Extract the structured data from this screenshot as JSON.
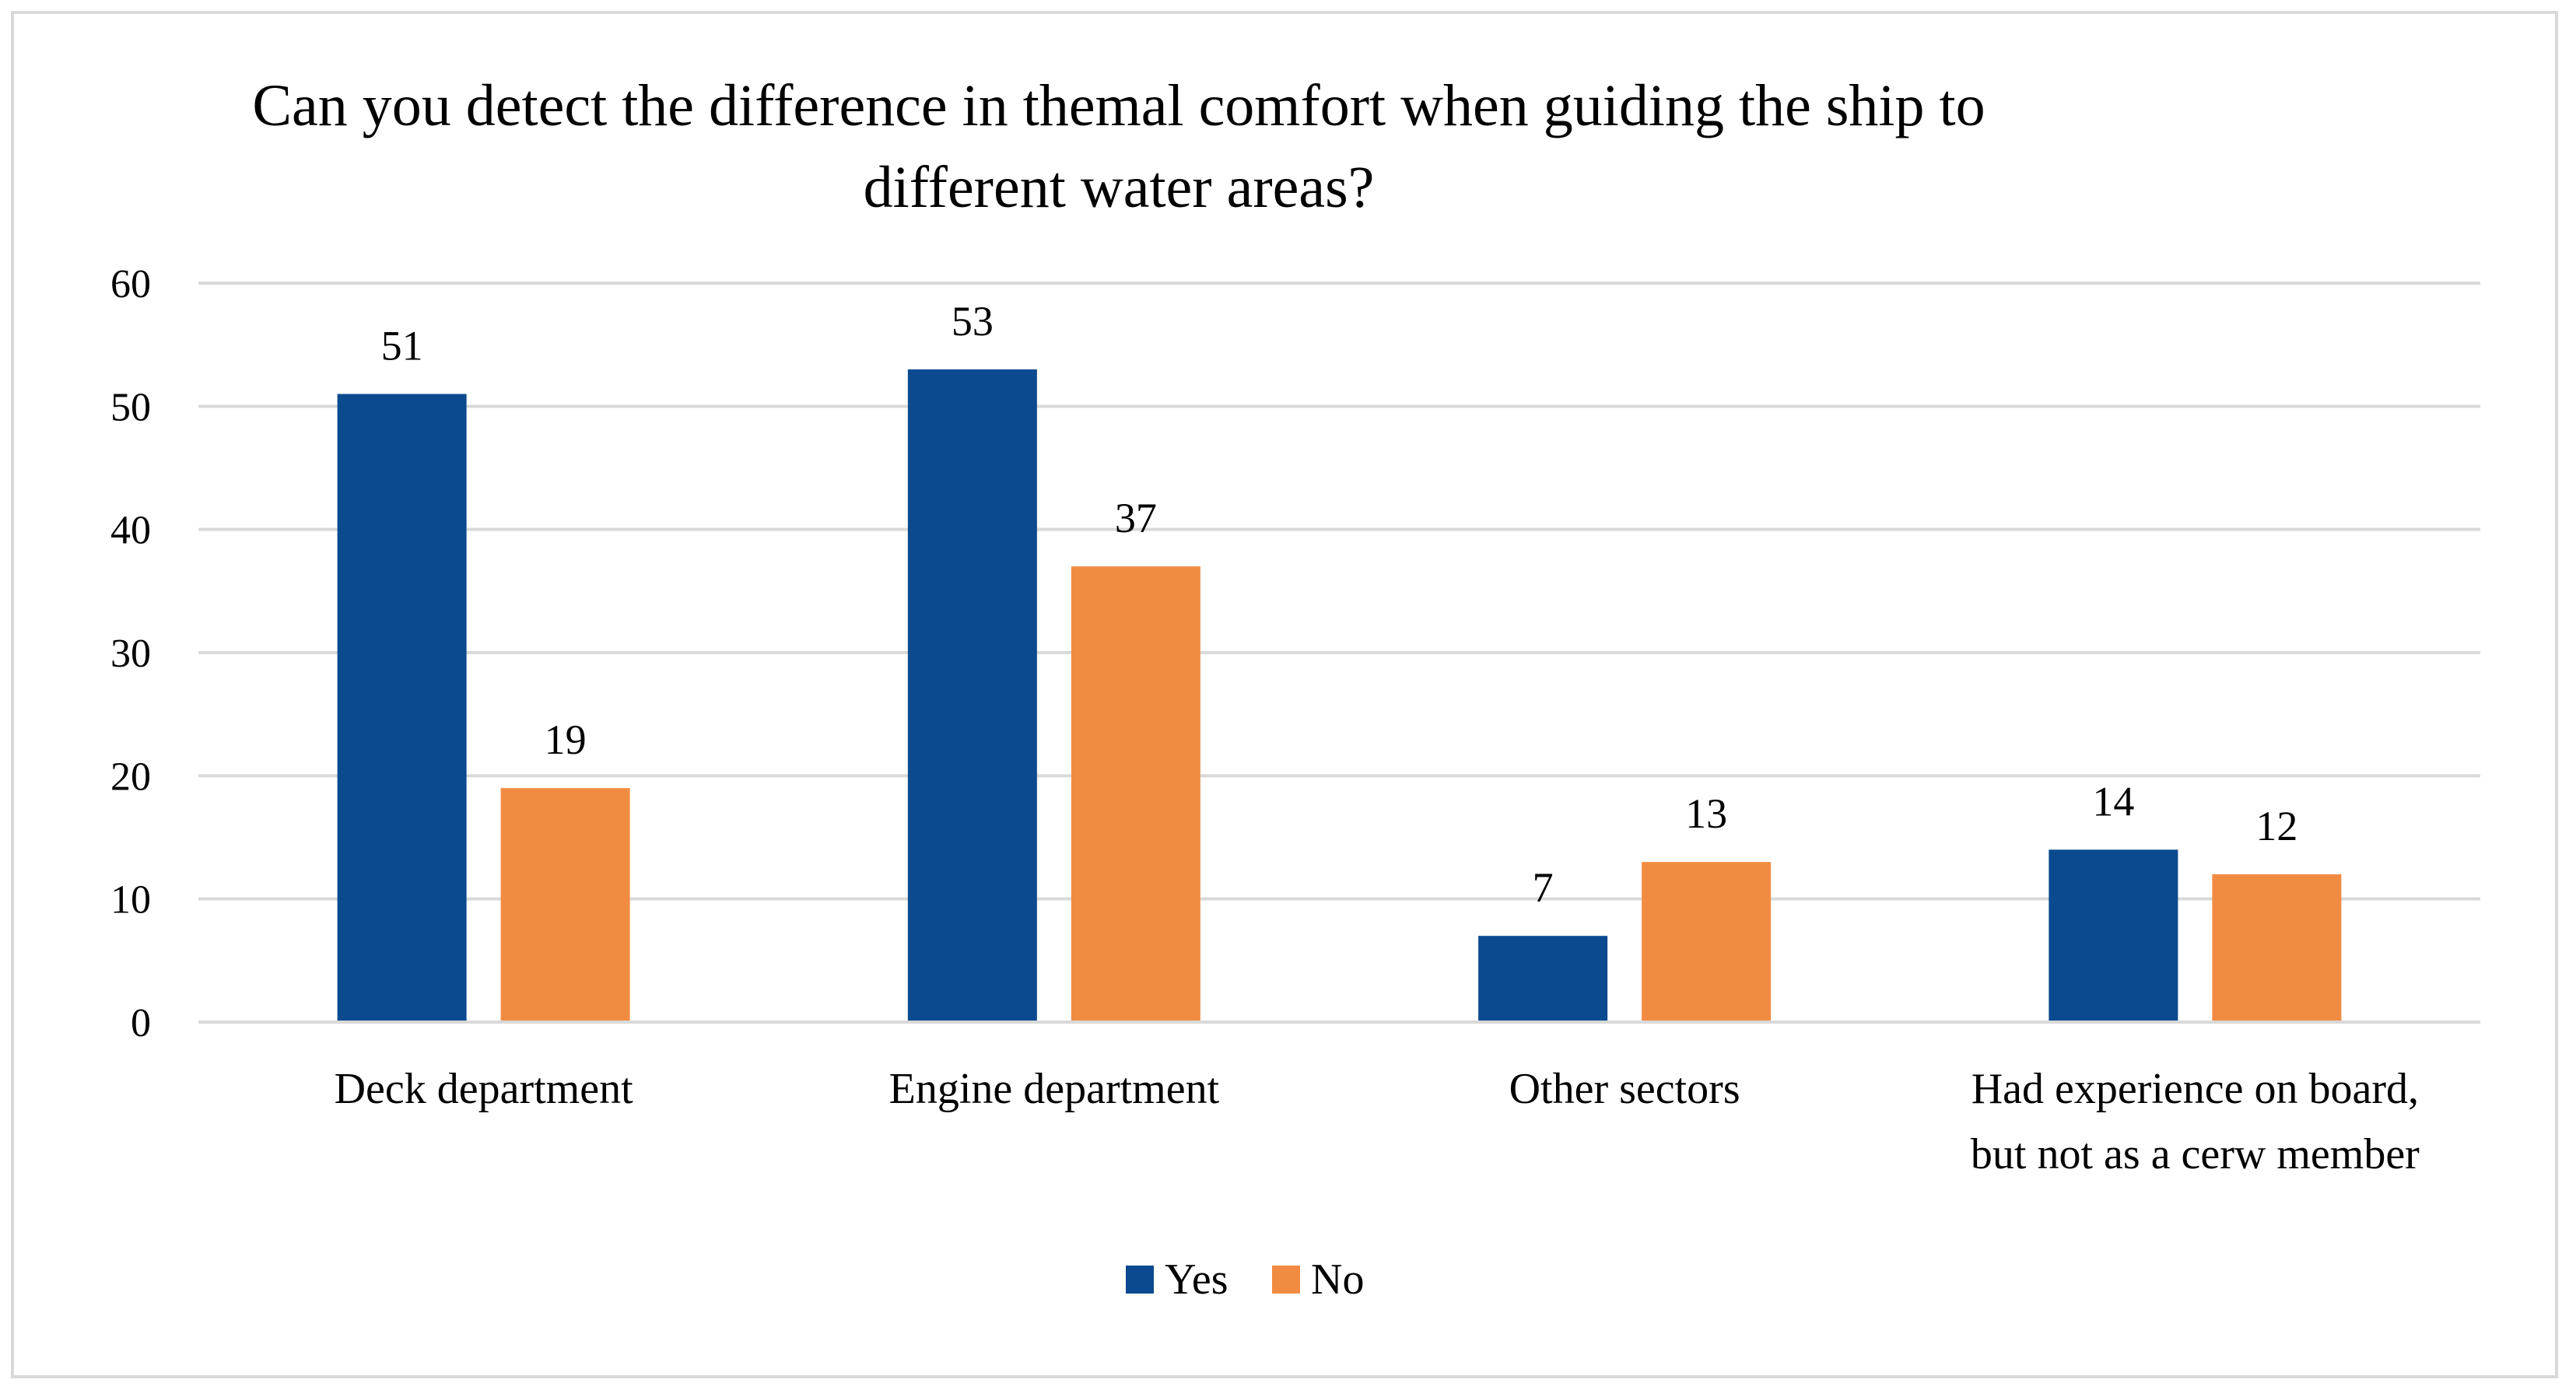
{
  "chart_data": {
    "type": "bar",
    "title": "Can you detect the difference in themal comfort when guiding the ship to different water areas?",
    "title_lines": [
      "Can you detect the difference in themal comfort when guiding the ship to",
      "different water areas?"
    ],
    "categories": [
      "Deck department",
      "Engine department",
      "Other sectors",
      "Had experience on board, but not as a cerw member"
    ],
    "category_lines": [
      [
        "Deck department"
      ],
      [
        "Engine department"
      ],
      [
        "Other sectors"
      ],
      [
        "Had experience on board,",
        "but not as a cerw member"
      ]
    ],
    "series": [
      {
        "name": "Yes",
        "color": "#0b4a8f",
        "values": [
          51,
          53,
          7,
          14
        ]
      },
      {
        "name": "No",
        "color": "#f28b42",
        "values": [
          19,
          37,
          13,
          12
        ]
      }
    ],
    "ylim": [
      0,
      60
    ],
    "yticks": [
      0,
      10,
      20,
      30,
      40,
      50,
      60
    ],
    "grid": true,
    "legend": "bottom",
    "xlabel": "",
    "ylabel": ""
  }
}
